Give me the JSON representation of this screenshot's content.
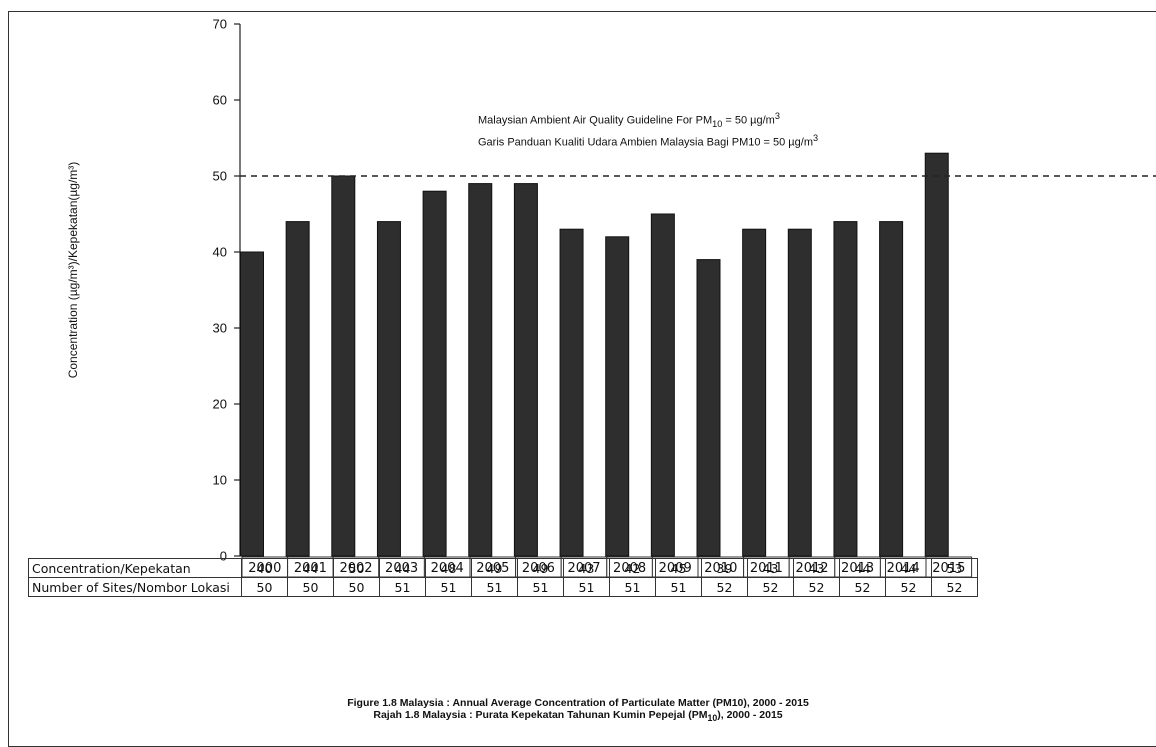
{
  "chart_data": {
    "type": "bar",
    "categories": [
      "2000",
      "2001",
      "2002",
      "2003",
      "2004",
      "2005",
      "2006",
      "2007",
      "2008",
      "2009",
      "2010",
      "2011",
      "2012",
      "2013",
      "2014",
      "2015"
    ],
    "values": [
      40,
      44,
      50,
      44,
      48,
      49,
      49,
      43,
      42,
      45,
      39,
      43,
      43,
      44,
      44,
      53
    ],
    "ylabel": "Concentration (µg/m³)/Kepekatan(µg/m³)",
    "xlabel": "",
    "ylim": [
      0,
      70
    ],
    "yticks": [
      "0",
      "10",
      "20",
      "30",
      "40",
      "50",
      "60",
      "70"
    ],
    "guideline": {
      "value": 50,
      "line1_a": "Malaysian Ambient Air Quality Guideline For PM",
      "line1_sub": "10",
      "line1_b": " = 50 µg/m",
      "line1_sup": "3",
      "line2_a": "Garis Panduan Kualiti Udara Ambien Malaysia Bagi PM10 = 50 µg/m",
      "line2_sup": "3"
    },
    "bar_color": "#2e2e2e",
    "grid": false,
    "legend": "none"
  },
  "table": {
    "row1_label": "Concentration/Kepekatan",
    "row1_values": [
      "40",
      "44",
      "50",
      "44",
      "48",
      "49",
      "49",
      "43",
      "42",
      "45",
      "39",
      "43",
      "43",
      "44",
      "44",
      "53"
    ],
    "row2_label": "Number of Sites/Nombor Lokasi",
    "row2_values": [
      "50",
      "50",
      "50",
      "51",
      "51",
      "51",
      "51",
      "51",
      "51",
      "51",
      "52",
      "52",
      "52",
      "52",
      "52",
      "52"
    ]
  },
  "caption": {
    "line1": "Figure 1.8 Malaysia  : Annual Average Concentration of Particulate Matter (PM10), 2000 - 2015",
    "line2_a": "Rajah 1.8 Malaysia  : Purata Kepekatan Tahunan Kumin Pepejal (PM",
    "line2_sub": "10",
    "line2_b": "), 2000 - 2015"
  }
}
